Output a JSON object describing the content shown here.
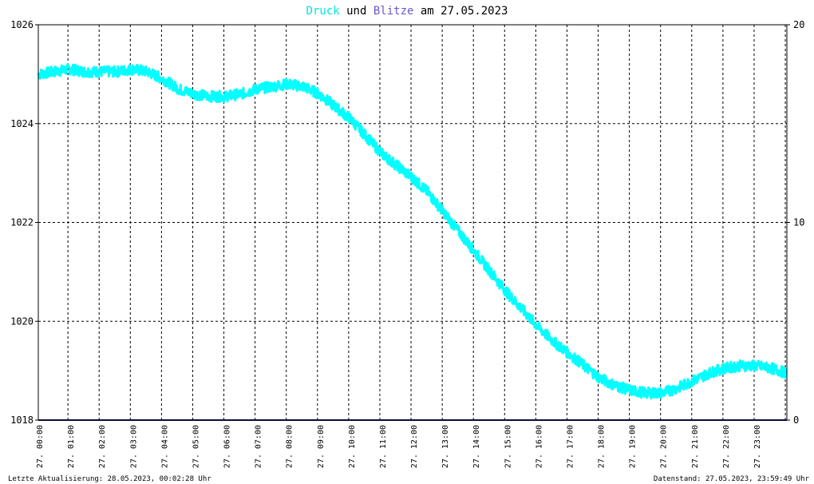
{
  "title": {
    "series1": "Druck",
    "und": "und",
    "series2": "Blitze",
    "am_date": "am 27.05.2023"
  },
  "footer": {
    "left": "Letzte Aktualisierung: 28.05.2023, 00:02:28 Uhr",
    "right": "Datenstand: 27.05.2023, 23:59:49 Uhr"
  },
  "colors": {
    "druck": "#00ffff",
    "blitze": "#191970",
    "grid": "#000000",
    "axis": "#000000"
  },
  "chart_data": {
    "type": "line",
    "title": "Druck und Blitze am 27.05.2023",
    "grid": true,
    "x_ticks": [
      "27. 00:00",
      "27. 01:00",
      "27. 02:00",
      "27. 03:00",
      "27. 04:00",
      "27. 05:00",
      "27. 06:00",
      "27. 07:00",
      "27. 08:00",
      "27. 09:00",
      "27. 10:00",
      "27. 11:00",
      "27. 12:00",
      "27. 13:00",
      "27. 14:00",
      "27. 15:00",
      "27. 16:00",
      "27. 17:00",
      "27. 18:00",
      "27. 19:00",
      "27. 20:00",
      "27. 21:00",
      "27. 22:00",
      "27. 23:00"
    ],
    "y_left": {
      "ylim": [
        1018,
        1026
      ],
      "ticks": [
        "1018",
        "1020",
        "1022",
        "1024",
        "1026"
      ]
    },
    "y_right": {
      "ylim": [
        0,
        20
      ],
      "ticks": [
        "0",
        "10",
        "20"
      ]
    },
    "series": [
      {
        "name": "Druck",
        "axis": "left",
        "x_hours": [
          0,
          0.5,
          1,
          1.5,
          2,
          2.5,
          3,
          3.5,
          4,
          4.5,
          5,
          5.5,
          6,
          6.5,
          7,
          7.5,
          8,
          8.5,
          9,
          9.5,
          10,
          10.5,
          11,
          11.5,
          12,
          12.5,
          13,
          13.5,
          14,
          14.5,
          15,
          15.5,
          16,
          16.5,
          17,
          17.5,
          18,
          18.5,
          19,
          19.5,
          20,
          20.5,
          21,
          21.5,
          22,
          22.5,
          23,
          23.5,
          24
        ],
        "values": [
          1025.0,
          1025.05,
          1025.1,
          1025.05,
          1025.05,
          1025.05,
          1025.1,
          1025.05,
          1024.9,
          1024.7,
          1024.6,
          1024.55,
          1024.55,
          1024.6,
          1024.7,
          1024.75,
          1024.8,
          1024.75,
          1024.6,
          1024.35,
          1024.1,
          1023.75,
          1023.4,
          1023.15,
          1022.9,
          1022.6,
          1022.2,
          1021.8,
          1021.4,
          1021.0,
          1020.6,
          1020.25,
          1019.9,
          1019.6,
          1019.35,
          1019.1,
          1018.85,
          1018.7,
          1018.6,
          1018.55,
          1018.55,
          1018.65,
          1018.8,
          1018.95,
          1019.05,
          1019.1,
          1019.1,
          1019.05,
          1018.95
        ]
      },
      {
        "name": "Blitze",
        "axis": "right",
        "x_hours": [
          0,
          24
        ],
        "values": [
          0,
          0
        ]
      }
    ]
  }
}
